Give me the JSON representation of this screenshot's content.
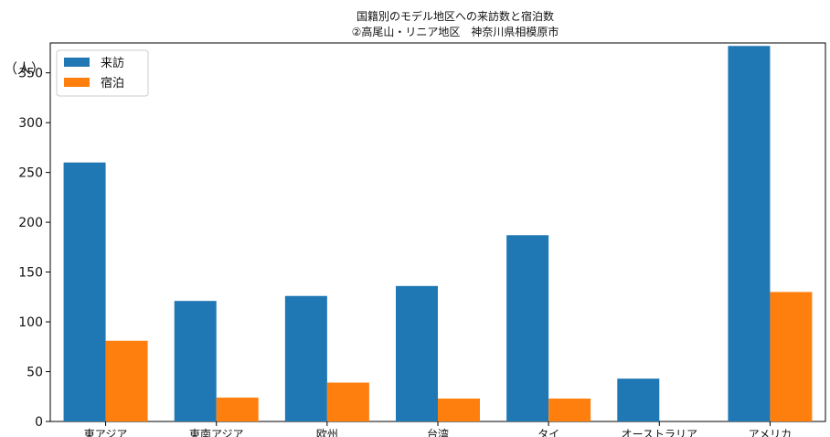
{
  "chart_data": {
    "type": "bar",
    "title_lines": [
      "国籍別のモデル地区への来訪数と宿泊数",
      "②高尾山・リニア地区　神奈川県相模原市"
    ],
    "ylabel": "（人）",
    "xlabel": "",
    "ylim": [
      0,
      380
    ],
    "yticks": [
      0,
      50,
      100,
      150,
      200,
      250,
      300,
      350
    ],
    "legend_position": "top-left",
    "grid": false,
    "categories": [
      "東アジア",
      "東南アジア",
      "欧州",
      "台湾",
      "タイ",
      "オーストラリア",
      "アメリカ"
    ],
    "series": [
      {
        "name": "来訪",
        "color": "#1f77b4",
        "values": [
          260,
          121,
          126,
          136,
          187,
          43,
          377
        ]
      },
      {
        "name": "宿泊",
        "color": "#ff7f0e",
        "values": [
          81,
          24,
          39,
          23,
          23,
          0,
          130
        ]
      }
    ]
  }
}
